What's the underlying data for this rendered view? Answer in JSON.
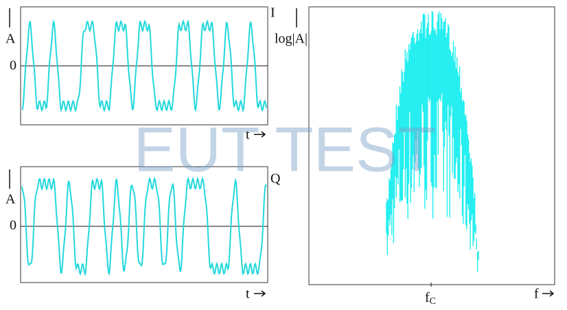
{
  "watermark": "EUT TEST",
  "i_panel": {
    "axis_label": "A",
    "zero": "0",
    "channel": "I",
    "time": "t"
  },
  "q_panel": {
    "axis_label": "A",
    "zero": "0",
    "channel": "Q",
    "time": "t"
  },
  "spectrum_panel": {
    "axis_label": "log|A|",
    "frequency": "f",
    "center": {
      "main": "f",
      "sub": "C"
    }
  }
}
